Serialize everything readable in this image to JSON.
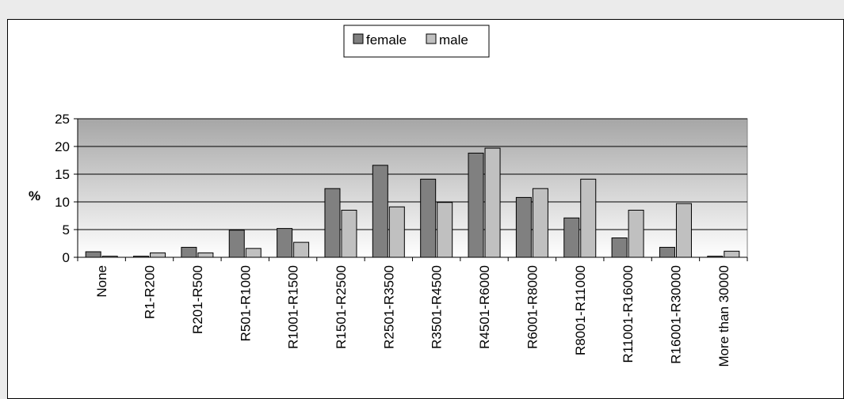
{
  "chart_data": {
    "type": "bar",
    "title": "",
    "xlabel": "",
    "ylabel": "%",
    "ylim": [
      0,
      25
    ],
    "yticks": [
      0,
      5,
      10,
      15,
      20,
      25
    ],
    "grid": true,
    "legend_position": "top",
    "categories": [
      "None",
      "R1-R200",
      "R201-R500",
      "R501-R1000",
      "R1001-R1500",
      "R1501-R2500",
      "R2501-R3500",
      "R3501-R4500",
      "R4501-R6000",
      "R6001-R8000",
      "R8001-R11000",
      "R11001-R16000",
      "R16001-R30000",
      "More than 30000"
    ],
    "series": [
      {
        "name": "female",
        "color": "#808080",
        "values": [
          1.0,
          0.2,
          1.8,
          4.9,
          5.2,
          12.4,
          16.6,
          14.1,
          18.8,
          10.8,
          7.1,
          3.5,
          1.8,
          0.2
        ]
      },
      {
        "name": "male",
        "color": "#c0c0c0",
        "values": [
          0.2,
          0.8,
          0.8,
          1.6,
          2.7,
          8.5,
          9.1,
          9.9,
          19.7,
          12.4,
          14.1,
          8.5,
          9.7,
          1.1
        ]
      }
    ],
    "colors": {
      "plot_top": "#a6a6a6",
      "plot_bottom": "#ffffff",
      "bar_stroke": "#000000",
      "axis": "#000000"
    }
  }
}
